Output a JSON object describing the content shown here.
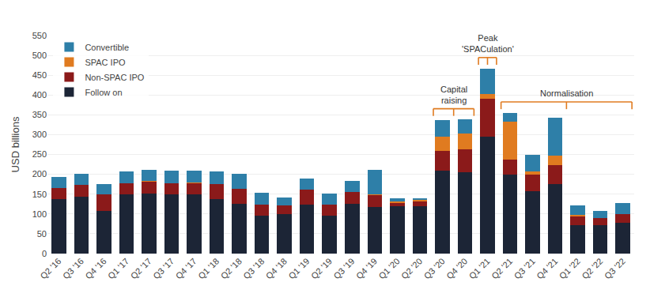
{
  "chart_data": {
    "type": "bar",
    "stacked": true,
    "categories": [
      "Q2 '16",
      "Q3 '16",
      "Q4 '16",
      "Q1 '17",
      "Q2 '17",
      "Q3 '17",
      "Q4 '17",
      "Q1 '18",
      "Q2 '18",
      "Q3 '18",
      "Q4 '18",
      "Q1 '19",
      "Q2 '19",
      "Q3 '19",
      "Q4 '19",
      "Q1 '20",
      "Q2 '20",
      "Q3 '20",
      "Q4 '20",
      "Q1 '21",
      "Q2 '21",
      "Q3 '21",
      "Q4 '21",
      "Q1 '22",
      "Q2 '22",
      "Q3 '22"
    ],
    "series": [
      {
        "name": "Follow on",
        "color": "#1c2536",
        "values": [
          138,
          143,
          108,
          150,
          152,
          150,
          150,
          138,
          125,
          95,
          100,
          123,
          95,
          125,
          118,
          120,
          120,
          210,
          205,
          295,
          200,
          158,
          175,
          72,
          72,
          78
        ]
      },
      {
        "name": "Non-SPAC IPO",
        "color": "#8b1a1a",
        "values": [
          28,
          30,
          42,
          28,
          30,
          28,
          28,
          38,
          38,
          28,
          22,
          38,
          28,
          30,
          30,
          8,
          12,
          50,
          58,
          95,
          38,
          42,
          48,
          22,
          18,
          22
        ]
      },
      {
        "name": "SPAC IPO",
        "color": "#e07b20",
        "values": [
          0,
          0,
          0,
          0,
          1,
          0,
          1,
          0,
          0,
          0,
          0,
          0,
          0,
          0,
          1,
          3,
          3,
          35,
          40,
          12,
          95,
          8,
          25,
          3,
          0,
          0
        ]
      },
      {
        "name": "Convertible",
        "color": "#2e7fa8",
        "values": [
          28,
          28,
          25,
          30,
          28,
          32,
          30,
          32,
          38,
          30,
          20,
          28,
          28,
          28,
          62,
          8,
          5,
          42,
          35,
          65,
          22,
          42,
          95,
          25,
          18,
          28
        ]
      }
    ],
    "ylabel": "USD billions",
    "ylim": [
      0,
      550
    ],
    "yticks": [
      0,
      50,
      100,
      150,
      200,
      250,
      300,
      350,
      400,
      450,
      500,
      550
    ],
    "grid": true,
    "legend": "upper left",
    "annotations": [
      {
        "text": "Capital\nraising",
        "start": "Q3 '20",
        "end": "Q4 '20",
        "color": "#e07b20"
      },
      {
        "text": "Peak\n'SPACulation'",
        "start": "Q1 '21",
        "end": "Q1 '21",
        "color": "#e07b20"
      },
      {
        "text": "Normalisation",
        "start": "Q2 '21",
        "end": "Q3 '22",
        "color": "#e07b20"
      }
    ]
  }
}
